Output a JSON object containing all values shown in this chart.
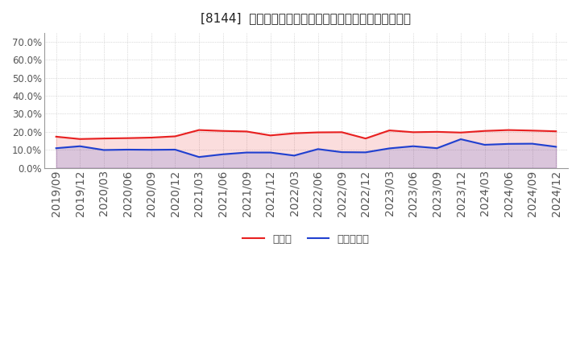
{
  "title": "[8144]  現預金、有利子負債の総資産に対する比率の推移",
  "x_labels": [
    "2019/09",
    "2019/12",
    "2020/03",
    "2020/06",
    "2020/09",
    "2020/12",
    "2021/03",
    "2021/06",
    "2021/09",
    "2021/12",
    "2022/03",
    "2022/06",
    "2022/09",
    "2022/12",
    "2023/03",
    "2023/06",
    "2023/09",
    "2023/12",
    "2024/03",
    "2024/06",
    "2024/09",
    "2024/12"
  ],
  "genkin": [
    0.173,
    0.16,
    0.163,
    0.165,
    0.168,
    0.175,
    0.21,
    0.205,
    0.202,
    0.18,
    0.192,
    0.197,
    0.198,
    0.163,
    0.208,
    0.198,
    0.2,
    0.196,
    0.205,
    0.21,
    0.207,
    0.203
  ],
  "yushi": [
    0.109,
    0.12,
    0.099,
    0.101,
    0.1,
    0.101,
    0.06,
    0.075,
    0.085,
    0.085,
    0.068,
    0.104,
    0.087,
    0.086,
    0.108,
    0.12,
    0.109,
    0.159,
    0.128,
    0.133,
    0.134,
    0.117
  ],
  "genkin_color": "#e82020",
  "yushi_color": "#2040d0",
  "ylim": [
    0.0,
    0.75
  ],
  "yticks": [
    0.0,
    0.1,
    0.2,
    0.3,
    0.4,
    0.5,
    0.6,
    0.7
  ],
  "background_color": "#ffffff",
  "plot_bg_color": "#ffffff",
  "grid_color": "#aaaaaa",
  "legend_genkin": "現預金",
  "legend_yushi": "有利子負債",
  "title_fontsize": 11
}
